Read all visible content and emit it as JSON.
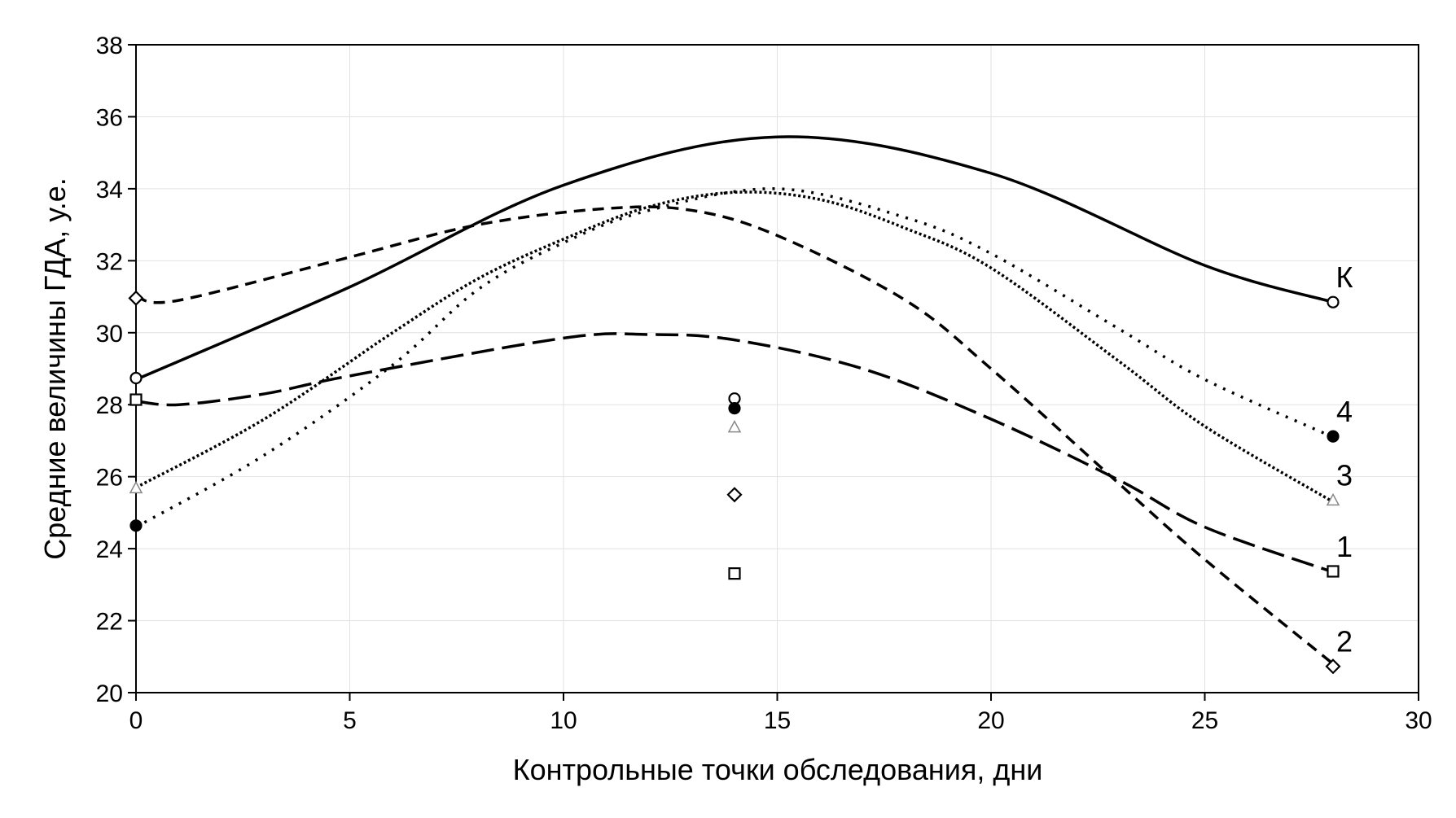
{
  "chart_data": {
    "type": "line",
    "x_label": "Контрольные точки обследования, дни",
    "y_label": "Средние величины ГДА, у.е.",
    "xlim": [
      0,
      30
    ],
    "xticks": [
      0,
      5,
      10,
      15,
      20,
      25,
      30
    ],
    "ylim": [
      20,
      38
    ],
    "yticks": [
      20,
      22,
      24,
      26,
      28,
      30,
      32,
      34,
      36,
      38
    ],
    "grid": true,
    "x": [
      0,
      14,
      28
    ],
    "series": [
      {
        "name": "К",
        "color": "#000000",
        "marker": "circle",
        "dash": "none",
        "width": 3.5,
        "values": [
          28.74,
          28.17,
          30.85
        ],
        "curve": {
          "x": [
            0,
            5,
            10,
            15,
            20,
            25,
            28
          ],
          "values": [
            28.7,
            31.27,
            34.1,
            35.44,
            34.43,
            31.87,
            30.85
          ]
        }
      },
      {
        "name": "1",
        "color": "#000000",
        "marker": "square",
        "dash": "28,10",
        "width": 3.5,
        "values": [
          28.14,
          23.31,
          23.37
        ],
        "curve": {
          "x": [
            0,
            1,
            3,
            5,
            10,
            12,
            14,
            17,
            20,
            23,
            25,
            28
          ],
          "values": [
            28.1,
            28.0,
            28.3,
            28.8,
            29.85,
            29.95,
            29.8,
            29.0,
            27.6,
            25.9,
            24.6,
            23.35
          ]
        }
      },
      {
        "name": "2",
        "color": "#000000",
        "marker": "diamond",
        "dash": "14,9",
        "width": 3.5,
        "values": [
          30.96,
          25.5,
          20.73
        ],
        "curve": {
          "x": [
            0,
            1,
            5,
            8,
            11,
            13,
            15,
            18,
            20,
            23,
            25,
            28
          ],
          "values": [
            31.0,
            30.9,
            32.1,
            33.0,
            33.45,
            33.4,
            32.7,
            30.9,
            29.0,
            25.8,
            23.7,
            20.8
          ]
        }
      },
      {
        "name": "3",
        "color": "#888888",
        "marker": "triangle",
        "dash": "3,3",
        "width": 3.5,
        "values": [
          25.69,
          27.38,
          25.35
        ],
        "curve": {
          "x": [
            0,
            3,
            6,
            8,
            10,
            12,
            14,
            16,
            18,
            20,
            23,
            25,
            28
          ],
          "values": [
            25.7,
            27.6,
            30.0,
            31.5,
            32.6,
            33.5,
            33.9,
            33.7,
            32.9,
            31.8,
            29.2,
            27.4,
            25.3
          ]
        }
      },
      {
        "name": "4",
        "color": "#000000",
        "marker": "filled-circle",
        "dash": "3,9",
        "width": 3.5,
        "values": [
          24.64,
          27.9,
          27.12
        ],
        "curve": {
          "x": [
            0,
            3,
            6,
            8,
            10,
            12,
            15,
            18,
            20,
            23,
            25,
            28
          ],
          "values": [
            24.6,
            26.6,
            29.1,
            31.2,
            32.5,
            33.4,
            34.0,
            33.2,
            32.2,
            30.1,
            28.7,
            27.1
          ]
        }
      }
    ]
  }
}
